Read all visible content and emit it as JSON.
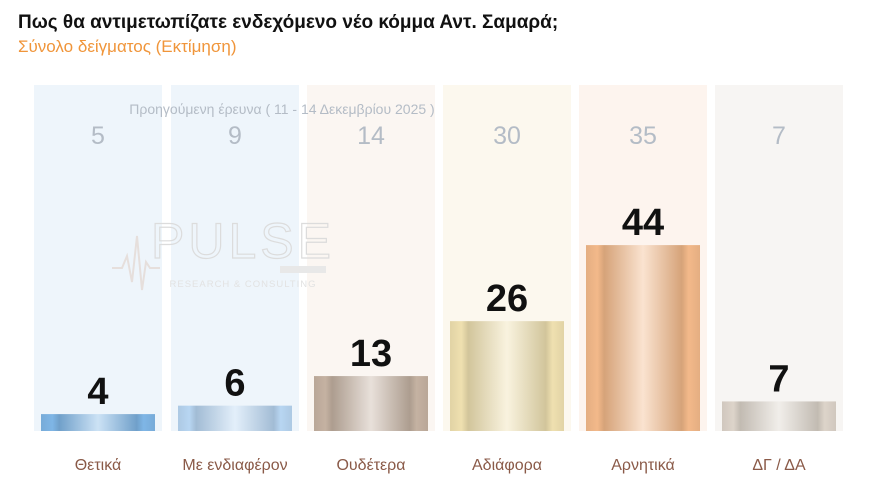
{
  "header": {
    "title": "Πως θα αντιμετωπίζατε ενδεχόμενο νέο κόμμα Αντ. Σαμαρά;",
    "subtitle": "Σύνολο δείγματος  (Εκτίμηση)"
  },
  "watermark": {
    "logo": "PULSE",
    "tagline": "RESEARCH & CONSULTING"
  },
  "chart_data": {
    "type": "bar",
    "title": "Πως θα αντιμετωπίζατε ενδεχόμενο νέο κόμμα Αντ. Σαμαρά;",
    "subtitle": "Σύνολο δείγματος  (Εκτίμηση)",
    "categories": [
      "Θετικά",
      "Με ενδιαφέρον",
      "Ουδέτερα",
      "Αδιάφορα",
      "Αρνητικά",
      "ΔΓ / ΔΑ"
    ],
    "series": [
      {
        "name": "",
        "values": [
          4,
          6,
          13,
          26,
          44,
          7
        ]
      },
      {
        "name": "Προηγούμενη έρευνα ( 11 - 14 Δεκεμβρίου 2025 )",
        "values": [
          5,
          9,
          14,
          30,
          35,
          7
        ]
      }
    ],
    "ylim": [
      0,
      80
    ],
    "grid": false,
    "legend": "none",
    "colors": {
      "bars": [
        "#7fb6e6",
        "#b8d6f2",
        "#c5b2a2",
        "#efe0b0",
        "#f3b98a",
        "#ddd4ca"
      ],
      "columns": [
        "#eef5fb",
        "#eef5fb",
        "#fbf6f2",
        "#fcf8ee",
        "#fdf4ee",
        "#f7f5f3"
      ],
      "previous_text": "#b4bcc6",
      "category_text": "#8a5a48",
      "value_text": "#111111"
    }
  }
}
